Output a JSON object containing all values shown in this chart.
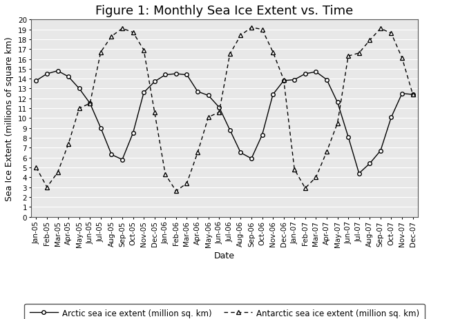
{
  "title": "Figure 1: Monthly Sea Ice Extent vs. Time",
  "xlabel": "Date",
  "ylabel": "Sea Ice Extent (millions of square km)",
  "ylim": [
    0,
    20
  ],
  "yticks": [
    0,
    1,
    2,
    3,
    4,
    5,
    6,
    7,
    8,
    9,
    10,
    11,
    12,
    13,
    14,
    15,
    16,
    17,
    18,
    19,
    20
  ],
  "x_labels": [
    "Jan-05",
    "Feb-05",
    "Mar-05",
    "Apr-05",
    "May-05",
    "Jun-05",
    "Jul-05",
    "Aug-05",
    "Sep-05",
    "Oct-05",
    "Nov-05",
    "Dec-05",
    "Jan-06",
    "Feb-06",
    "Mar-06",
    "Apr-06",
    "May-06",
    "Jun-06",
    "Jul-06",
    "Aug-06",
    "Sep-06",
    "Oct-06",
    "Nov-06",
    "Dec-06",
    "Jan-07",
    "Feb-07",
    "Mar-07",
    "Apr-07",
    "May-07",
    "Jun-07",
    "Jul-07",
    "Aug-07",
    "Sep-07",
    "Oct-07",
    "Nov-07",
    "Dec-07"
  ],
  "arctic": [
    13.8,
    14.5,
    14.8,
    14.2,
    13.0,
    11.5,
    9.0,
    6.3,
    5.8,
    8.5,
    12.6,
    13.7,
    14.4,
    14.5,
    14.4,
    12.7,
    12.3,
    11.1,
    8.8,
    6.5,
    5.9,
    8.3,
    12.4,
    13.8,
    13.9,
    14.5,
    14.7,
    13.9,
    11.6,
    8.1,
    4.4,
    5.4,
    6.7,
    10.1,
    12.5,
    12.4
  ],
  "antarctic": [
    5.0,
    3.0,
    4.5,
    7.4,
    11.0,
    11.5,
    16.7,
    18.3,
    19.1,
    18.7,
    16.9,
    10.6,
    4.3,
    2.6,
    3.4,
    6.5,
    10.1,
    10.6,
    16.5,
    18.4,
    19.2,
    19.0,
    16.7,
    13.9,
    4.8,
    2.9,
    4.0,
    6.6,
    9.5,
    16.3,
    16.6,
    17.9,
    19.1,
    18.6,
    16.1,
    12.4
  ],
  "line_color": "#000000",
  "arctic_label": "Arctic sea ice extent (million sq. km)",
  "antarctic_label": "Antarctic sea ice extent (million sq. km)",
  "bg_color": "#ffffff",
  "plot_bg_color": "#e8e8e8",
  "grid_color": "#ffffff",
  "title_fontsize": 13,
  "label_fontsize": 9,
  "tick_fontsize": 7.5,
  "legend_fontsize": 8.5
}
